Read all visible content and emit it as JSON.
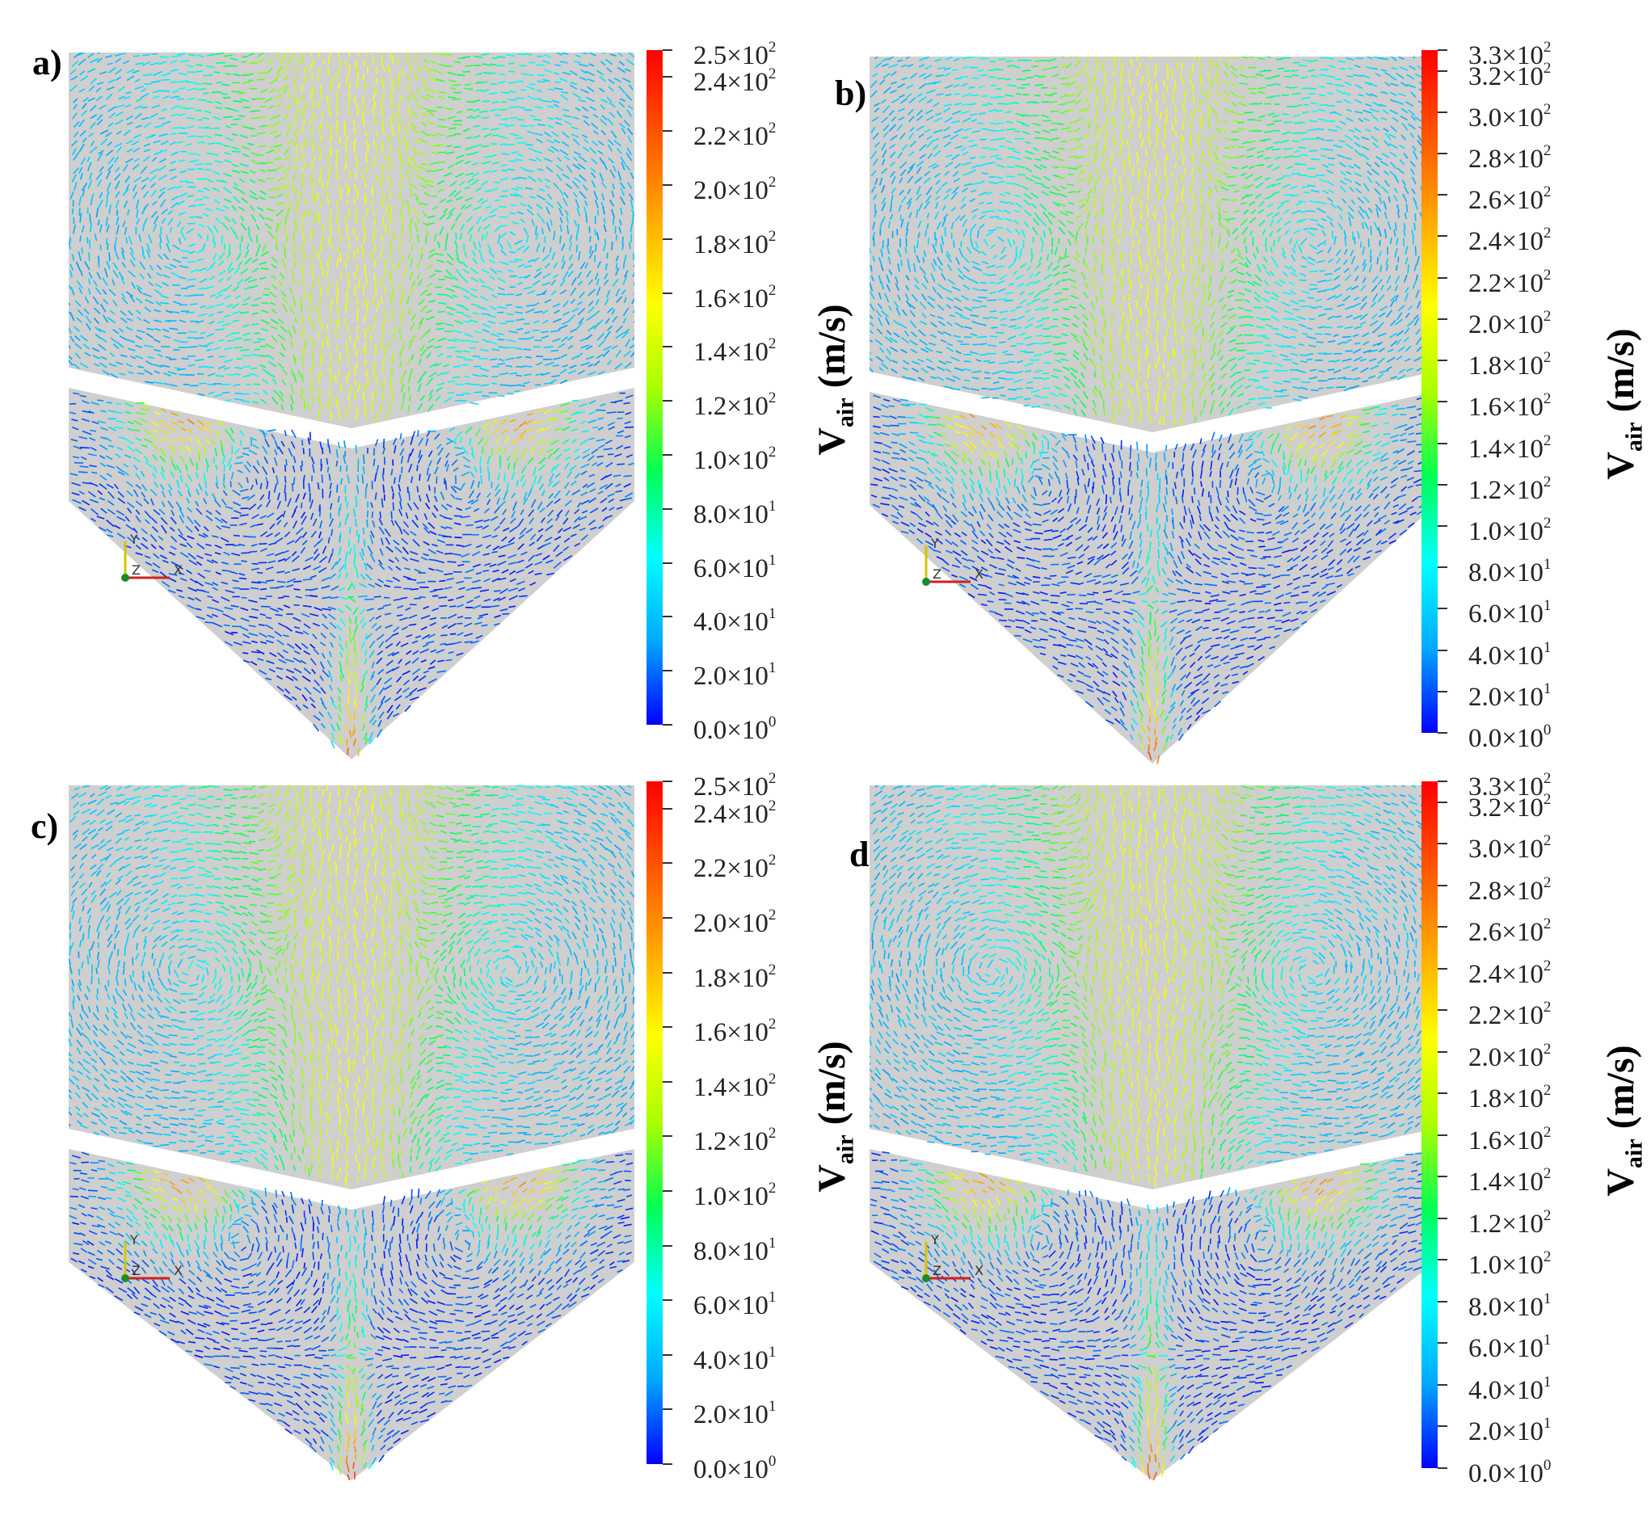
{
  "colorbar_title": {
    "main": "V",
    "sub": "air",
    "unit": "(m/s)"
  },
  "axis_triad": {
    "x": "x",
    "y": "y",
    "z": "z"
  },
  "colors": {
    "scale": [
      "#0000ff",
      "#00aaff",
      "#00ffff",
      "#00ff55",
      "#aaff00",
      "#ffff00",
      "#ffaa00",
      "#ff5500",
      "#ff0000"
    ],
    "mesh_grey": "#cfcfcf",
    "vector_blue": "#1a2fbf"
  },
  "panels": [
    {
      "id": "a",
      "label": "a)",
      "scale_max": 250,
      "ticks": [
        {
          "m": "2.5",
          "e": "2"
        },
        {
          "m": "2.4",
          "e": "2"
        },
        {
          "m": "2.2",
          "e": "2"
        },
        {
          "m": "2.0",
          "e": "2"
        },
        {
          "m": "1.8",
          "e": "2"
        },
        {
          "m": "1.6",
          "e": "2"
        },
        {
          "m": "1.4",
          "e": "2"
        },
        {
          "m": "1.2",
          "e": "2"
        },
        {
          "m": "1.0",
          "e": "2"
        },
        {
          "m": "8.0",
          "e": "1"
        },
        {
          "m": "6.0",
          "e": "1"
        },
        {
          "m": "4.0",
          "e": "1"
        },
        {
          "m": "2.0",
          "e": "1"
        },
        {
          "m": "0.0",
          "e": "0"
        }
      ],
      "tick_values": [
        250,
        240,
        220,
        200,
        180,
        160,
        140,
        120,
        100,
        80,
        60,
        40,
        20,
        0
      ]
    },
    {
      "id": "b",
      "label": "b)",
      "scale_max": 330,
      "ticks": [
        {
          "m": "3.3",
          "e": "2"
        },
        {
          "m": "3.2",
          "e": "2"
        },
        {
          "m": "3.0",
          "e": "2"
        },
        {
          "m": "2.8",
          "e": "2"
        },
        {
          "m": "2.6",
          "e": "2"
        },
        {
          "m": "2.4",
          "e": "2"
        },
        {
          "m": "2.2",
          "e": "2"
        },
        {
          "m": "2.0",
          "e": "2"
        },
        {
          "m": "1.8",
          "e": "2"
        },
        {
          "m": "1.6",
          "e": "2"
        },
        {
          "m": "1.4",
          "e": "2"
        },
        {
          "m": "1.2",
          "e": "2"
        },
        {
          "m": "1.0",
          "e": "2"
        },
        {
          "m": "8.0",
          "e": "1"
        },
        {
          "m": "6.0",
          "e": "1"
        },
        {
          "m": "4.0",
          "e": "1"
        },
        {
          "m": "2.0",
          "e": "1"
        },
        {
          "m": "0.0",
          "e": "0"
        }
      ],
      "tick_values": [
        330,
        320,
        300,
        280,
        260,
        240,
        220,
        200,
        180,
        160,
        140,
        120,
        100,
        80,
        60,
        40,
        20,
        0
      ]
    },
    {
      "id": "c",
      "label": "c)",
      "scale_max": 250,
      "ticks": [
        {
          "m": "2.5",
          "e": "2"
        },
        {
          "m": "2.4",
          "e": "2"
        },
        {
          "m": "2.2",
          "e": "2"
        },
        {
          "m": "2.0",
          "e": "2"
        },
        {
          "m": "1.8",
          "e": "2"
        },
        {
          "m": "1.6",
          "e": "2"
        },
        {
          "m": "1.4",
          "e": "2"
        },
        {
          "m": "1.2",
          "e": "2"
        },
        {
          "m": "1.0",
          "e": "2"
        },
        {
          "m": "8.0",
          "e": "1"
        },
        {
          "m": "6.0",
          "e": "1"
        },
        {
          "m": "4.0",
          "e": "1"
        },
        {
          "m": "2.0",
          "e": "1"
        },
        {
          "m": "0.0",
          "e": "0"
        }
      ],
      "tick_values": [
        250,
        240,
        220,
        200,
        180,
        160,
        140,
        120,
        100,
        80,
        60,
        40,
        20,
        0
      ]
    },
    {
      "id": "d",
      "label": "d)",
      "scale_max": 330,
      "ticks": [
        {
          "m": "3.3",
          "e": "2"
        },
        {
          "m": "3.2",
          "e": "2"
        },
        {
          "m": "3.0",
          "e": "2"
        },
        {
          "m": "2.8",
          "e": "2"
        },
        {
          "m": "2.6",
          "e": "2"
        },
        {
          "m": "2.4",
          "e": "2"
        },
        {
          "m": "2.2",
          "e": "2"
        },
        {
          "m": "2.0",
          "e": "2"
        },
        {
          "m": "1.8",
          "e": "2"
        },
        {
          "m": "1.6",
          "e": "2"
        },
        {
          "m": "1.4",
          "e": "2"
        },
        {
          "m": "1.2",
          "e": "2"
        },
        {
          "m": "1.0",
          "e": "2"
        },
        {
          "m": "8.0",
          "e": "1"
        },
        {
          "m": "6.0",
          "e": "1"
        },
        {
          "m": "4.0",
          "e": "1"
        },
        {
          "m": "2.0",
          "e": "1"
        },
        {
          "m": "0.0",
          "e": "0"
        }
      ],
      "tick_values": [
        330,
        320,
        300,
        280,
        260,
        240,
        220,
        200,
        180,
        160,
        140,
        120,
        100,
        80,
        60,
        40,
        20,
        0
      ]
    }
  ]
}
